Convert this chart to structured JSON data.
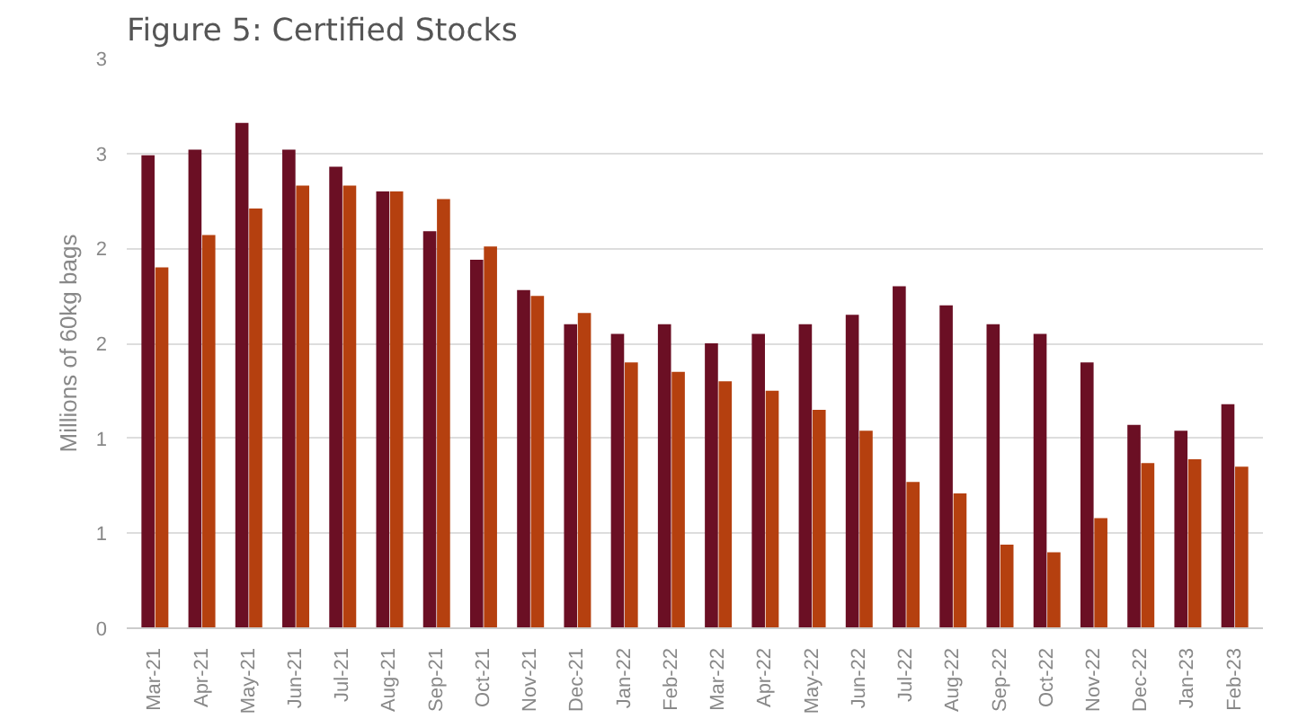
{
  "chart_data": {
    "type": "bar",
    "title": "Figure 5: Certified Stocks",
    "ylabel": "Millions of 60kg bags",
    "categories": [
      "Mar-21",
      "Apr-21",
      "May-21",
      "Jun-21",
      "Jul-21",
      "Aug-21",
      "Sep-21",
      "Oct-21",
      "Nov-21",
      "Dec-21",
      "Jan-22",
      "Feb-22",
      "Mar-22",
      "Apr-22",
      "May-22",
      "Jun-22",
      "Jul-22",
      "Aug-22",
      "Sep-22",
      "Oct-22",
      "Nov-22",
      "Dec-22",
      "Jan-23",
      "Feb-23"
    ],
    "series": [
      {
        "color": "#6b0f24",
        "values": [
          2.49,
          2.52,
          2.66,
          2.52,
          2.43,
          2.3,
          2.09,
          1.94,
          1.78,
          1.6,
          1.55,
          1.6,
          1.5,
          1.55,
          1.6,
          1.65,
          1.8,
          1.7,
          1.6,
          1.55,
          1.4,
          1.07,
          1.04,
          1.18
        ]
      },
      {
        "color": "#b5400f",
        "values": [
          1.9,
          2.07,
          2.21,
          2.33,
          2.33,
          2.3,
          2.26,
          2.01,
          1.75,
          1.66,
          1.4,
          1.35,
          1.3,
          1.25,
          1.15,
          1.04,
          0.77,
          0.71,
          0.44,
          0.4,
          0.58,
          0.87,
          0.89,
          0.85
        ]
      }
    ],
    "ylim": [
      0,
      3
    ],
    "yticks": [
      0,
      {
        "value": 0.5,
        "label": "1"
      },
      1,
      {
        "value": 1.5,
        "label": "2"
      },
      2,
      {
        "value": 2.5,
        "label": "3"
      },
      3
    ],
    "grid": "y"
  }
}
